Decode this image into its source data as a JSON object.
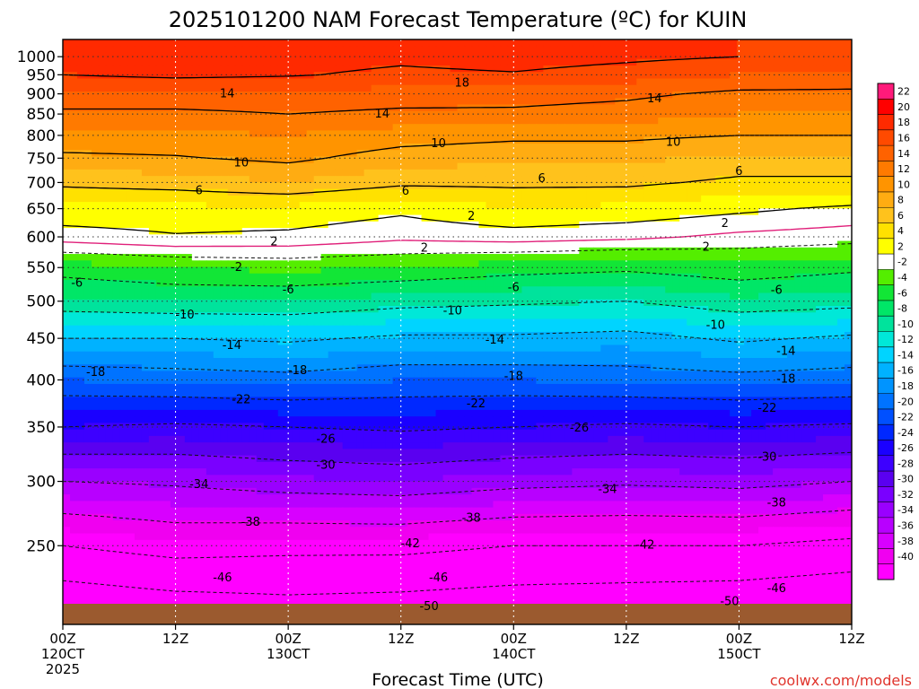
{
  "chart_data": {
    "type": "heatmap",
    "title": "2025101200 NAM Forecast Temperature (ºC) for KUIN",
    "xlabel": "Forecast Time (UTC)",
    "ylabel": "",
    "credit": "coolwx.com/models",
    "x_hours_range": [
      0,
      84
    ],
    "y_pressure_range": [
      1050,
      200
    ],
    "y_scale": "log-pressure",
    "grid": true,
    "x_ticks": [
      {
        "hour": 0,
        "lines": [
          "00Z",
          "120CT",
          "2025"
        ]
      },
      {
        "hour": 12,
        "lines": [
          "12Z"
        ]
      },
      {
        "hour": 24,
        "lines": [
          "00Z",
          "130CT"
        ]
      },
      {
        "hour": 36,
        "lines": [
          "12Z"
        ]
      },
      {
        "hour": 48,
        "lines": [
          "00Z",
          "140CT"
        ]
      },
      {
        "hour": 60,
        "lines": [
          "12Z"
        ]
      },
      {
        "hour": 72,
        "lines": [
          "00Z",
          "150CT"
        ]
      },
      {
        "hour": 84,
        "lines": [
          "12Z"
        ]
      }
    ],
    "y_ticks": [
      250,
      300,
      350,
      400,
      450,
      500,
      550,
      600,
      650,
      700,
      750,
      800,
      850,
      900,
      950,
      1000
    ],
    "series": [
      {
        "hours": [
          0,
          12,
          24,
          36,
          48,
          60,
          72,
          84
        ],
        "levels": [
          1000,
          950,
          900,
          850,
          800,
          750,
          700,
          650,
          600,
          550,
          500,
          450,
          400,
          350,
          300,
          250,
          200
        ],
        "temperatures": [
          [
            20,
            19.5,
            19,
            18.5,
            19,
            18.5,
            18,
            17.5
          ],
          [
            18,
            18.5,
            18.2,
            17.5,
            17.8,
            17,
            16,
            15.5
          ],
          [
            15.5,
            15.5,
            15.5,
            15.2,
            15.0,
            14.5,
            13.5,
            13.5
          ],
          [
            13.5,
            13.5,
            14,
            13.5,
            13.5,
            13,
            12,
            12
          ],
          [
            11.5,
            11.5,
            12,
            11,
            10.5,
            10.5,
            10,
            10
          ],
          [
            9.5,
            9.8,
            10.5,
            9,
            8.5,
            8.5,
            7.5,
            7.5
          ],
          [
            6.5,
            7,
            8,
            6.5,
            6.5,
            6.5,
            5.5,
            5.5
          ],
          [
            3.5,
            3.5,
            3.5,
            2.5,
            4,
            3.5,
            2.5,
            1.5
          ],
          [
            1.0,
            1.8,
            1.5,
            0.5,
            1,
            0.5,
            -0.5,
            -1.0
          ],
          [
            -5,
            -4,
            -3.5,
            -4,
            -5,
            -5.5,
            -4.5,
            -5.5
          ],
          [
            -8.5,
            -8,
            -8,
            -9,
            -9.5,
            -10,
            -8.5,
            -9
          ],
          [
            -14,
            -14,
            -13.5,
            -14.5,
            -14.5,
            -15,
            -13.5,
            -14.5
          ],
          [
            -20,
            -19.5,
            -19,
            -20,
            -20,
            -19.5,
            -19,
            -19.5
          ],
          [
            -26,
            -26.5,
            -26,
            -25.5,
            -26,
            -26.5,
            -26,
            -26.5
          ],
          [
            -34,
            -33.5,
            -32.5,
            -32,
            -33,
            -33.5,
            -33,
            -34
          ],
          [
            -42,
            -40.5,
            -41,
            -41,
            -42,
            -42,
            -42,
            -43
          ],
          [
            -51,
            -50,
            -49,
            -49.5,
            -50,
            -50.5,
            -51,
            -52
          ]
        ]
      }
    ],
    "contour_labels": [
      {
        "t": 17,
        "p": 229,
        "text": "-46"
      },
      {
        "t": 40,
        "p": 229,
        "text": "-46"
      },
      {
        "t": 76,
        "p": 222,
        "text": "-46"
      },
      {
        "t": 39,
        "p": 211,
        "text": "-50"
      },
      {
        "t": 71,
        "p": 214,
        "text": "-50"
      },
      {
        "t": 37,
        "p": 252,
        "text": "-42"
      },
      {
        "t": 62,
        "p": 251,
        "text": "-42"
      },
      {
        "t": 20,
        "p": 268,
        "text": "-38"
      },
      {
        "t": 43.5,
        "p": 271,
        "text": "-38"
      },
      {
        "t": 76,
        "p": 283,
        "text": "-38"
      },
      {
        "t": 14.5,
        "p": 298,
        "text": "-34"
      },
      {
        "t": 58,
        "p": 294,
        "text": "-34"
      },
      {
        "t": 28,
        "p": 315,
        "text": "-30"
      },
      {
        "t": 75,
        "p": 322,
        "text": "-30"
      },
      {
        "t": 28,
        "p": 339,
        "text": "-26"
      },
      {
        "t": 55,
        "p": 350,
        "text": "-26"
      },
      {
        "t": 19,
        "p": 379,
        "text": "-22"
      },
      {
        "t": 44,
        "p": 375,
        "text": "-22"
      },
      {
        "t": 75,
        "p": 370,
        "text": "-22"
      },
      {
        "t": 3.5,
        "p": 410,
        "text": "-18"
      },
      {
        "t": 25,
        "p": 412,
        "text": "-18"
      },
      {
        "t": 48,
        "p": 405,
        "text": "-18"
      },
      {
        "t": 77,
        "p": 402,
        "text": "-18"
      },
      {
        "t": 18,
        "p": 442,
        "text": "-14"
      },
      {
        "t": 46,
        "p": 449,
        "text": "-14"
      },
      {
        "t": 77,
        "p": 435,
        "text": "-14"
      },
      {
        "t": 13,
        "p": 482,
        "text": "-10"
      },
      {
        "t": 41.5,
        "p": 488,
        "text": "-10"
      },
      {
        "t": 69.5,
        "p": 468,
        "text": "-10"
      },
      {
        "t": 1.5,
        "p": 528,
        "text": "-6"
      },
      {
        "t": 24,
        "p": 518,
        "text": "-6"
      },
      {
        "t": 48,
        "p": 521,
        "text": "-6"
      },
      {
        "t": 76,
        "p": 517,
        "text": "-6"
      },
      {
        "t": 18.5,
        "p": 552,
        "text": "-2"
      },
      {
        "t": 38.5,
        "p": 583,
        "text": "2"
      },
      {
        "t": 22.5,
        "p": 593,
        "text": "2"
      },
      {
        "t": 43.5,
        "p": 638,
        "text": "2"
      },
      {
        "t": 68.5,
        "p": 584,
        "text": "2"
      },
      {
        "t": 70.5,
        "p": 625,
        "text": "2"
      },
      {
        "t": 14.5,
        "p": 686,
        "text": "6"
      },
      {
        "t": 36.5,
        "p": 685,
        "text": "6"
      },
      {
        "t": 51,
        "p": 710,
        "text": "6"
      },
      {
        "t": 72,
        "p": 724,
        "text": "6"
      },
      {
        "t": 19,
        "p": 742,
        "text": "10"
      },
      {
        "t": 40,
        "p": 784,
        "text": "10"
      },
      {
        "t": 65,
        "p": 787,
        "text": "10"
      },
      {
        "t": 34,
        "p": 852,
        "text": "14"
      },
      {
        "t": 17.5,
        "p": 903,
        "text": "14"
      },
      {
        "t": 63,
        "p": 890,
        "text": "14"
      },
      {
        "t": 42.5,
        "p": 930,
        "text": "18"
      }
    ],
    "colorbar": {
      "levels": [
        22,
        20,
        18,
        16,
        14,
        12,
        10,
        8,
        6,
        4,
        2,
        -2,
        -4,
        -6,
        -8,
        -10,
        -12,
        -14,
        -16,
        -18,
        -20,
        -22,
        -24,
        -26,
        -28,
        -30,
        -32,
        -34,
        -36,
        -38,
        -40
      ],
      "colors": [
        "#ff1a7a",
        "#ff0000",
        "#ff2a00",
        "#ff4a00",
        "#ff6200",
        "#ff7a00",
        "#ff9400",
        "#ffac12",
        "#ffc21c",
        "#ffe100",
        "#ffff00",
        "#ffffff",
        "#54ee00",
        "#12e636",
        "#00e667",
        "#00e39c",
        "#00e8d8",
        "#00d4ff",
        "#00b2ff",
        "#0094ff",
        "#0073ff",
        "#0050ff",
        "#0028ff",
        "#1a00ff",
        "#3d00ff",
        "#5a00f0",
        "#7a00ff",
        "#9a00ff",
        "#b800ff",
        "#d800ff",
        "#f000f0",
        "#ff00ff"
      ]
    }
  }
}
